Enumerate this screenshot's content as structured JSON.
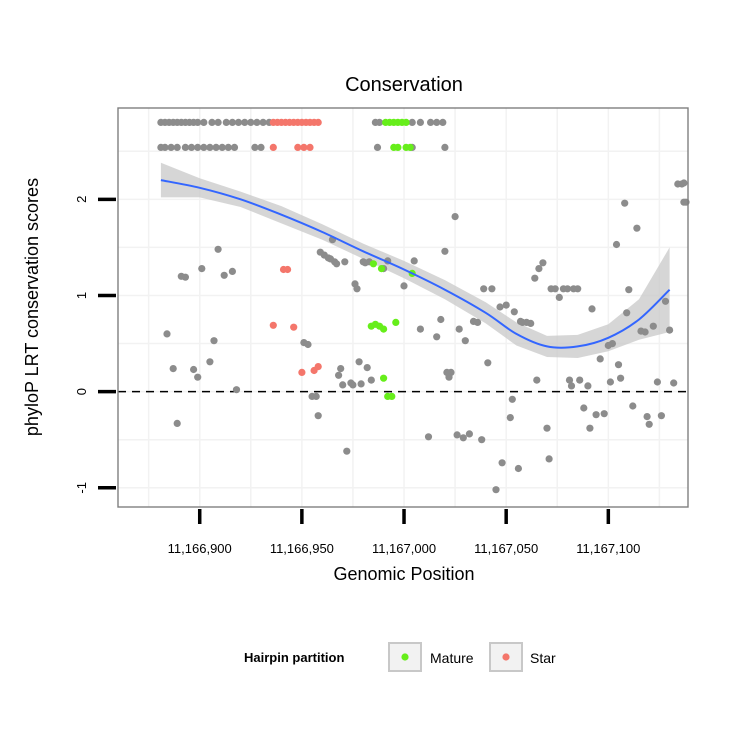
{
  "chart_data": {
    "type": "scatter",
    "title": "Conservation",
    "xlabel": "Genomic Position",
    "ylabel": "phyloP LRT conservation scores",
    "xlim": [
      11166860,
      11167139
    ],
    "ylim": [
      -1.2,
      2.95
    ],
    "x_ticks": [
      {
        "value": 11166900,
        "label": "11,166,900"
      },
      {
        "value": 11166950,
        "label": "11,166,950"
      },
      {
        "value": 11167000,
        "label": "11,167,000"
      },
      {
        "value": 11167050,
        "label": "11,167,050"
      },
      {
        "value": 11167100,
        "label": "11,167,100"
      }
    ],
    "y_ticks": [
      {
        "value": -1,
        "label": "-1"
      },
      {
        "value": 0,
        "label": "0"
      },
      {
        "value": 1,
        "label": "1"
      },
      {
        "value": 2,
        "label": "2"
      }
    ],
    "reference_line": {
      "y": 0,
      "style": "dashed"
    },
    "grid": true,
    "legend": {
      "title": "Hairpin partition",
      "position": "bottom",
      "entries": [
        {
          "name": "Mature",
          "color": "#66ee1a"
        },
        {
          "name": "Star",
          "color": "#f4766b"
        }
      ]
    },
    "colors": {
      "other": "#8c8c8c",
      "Mature": "#66ee1a",
      "Star": "#f4766b",
      "smooth": "#3366ff",
      "band": "#c8c8c8"
    },
    "smooth_line": {
      "x": [
        11166881,
        11166900,
        11166920,
        11166940,
        11166960,
        11166980,
        11167000,
        11167020,
        11167040,
        11167055,
        11167070,
        11167085,
        11167100,
        11167115,
        11167130
      ],
      "y": [
        2.2,
        2.12,
        2.0,
        1.84,
        1.66,
        1.46,
        1.27,
        1.06,
        0.82,
        0.6,
        0.47,
        0.47,
        0.56,
        0.75,
        1.06
      ],
      "upper": [
        2.38,
        2.22,
        2.08,
        1.93,
        1.74,
        1.54,
        1.36,
        1.16,
        0.93,
        0.72,
        0.58,
        0.59,
        0.7,
        0.96,
        1.5
      ],
      "lower": [
        2.02,
        2.02,
        1.92,
        1.75,
        1.58,
        1.38,
        1.18,
        0.96,
        0.71,
        0.48,
        0.36,
        0.35,
        0.42,
        0.54,
        0.62
      ]
    },
    "series": [
      {
        "name": "Other",
        "points": [
          [
            11166881,
            2.8
          ],
          [
            11166883,
            2.8
          ],
          [
            11166885,
            2.8
          ],
          [
            11166887,
            2.8
          ],
          [
            11166889,
            2.8
          ],
          [
            11166891,
            2.8
          ],
          [
            11166893,
            2.8
          ],
          [
            11166895,
            2.8
          ],
          [
            11166897,
            2.8
          ],
          [
            11166899,
            2.8
          ],
          [
            11166902,
            2.8
          ],
          [
            11166906,
            2.8
          ],
          [
            11166909,
            2.8
          ],
          [
            11166913,
            2.8
          ],
          [
            11166916,
            2.8
          ],
          [
            11166919,
            2.8
          ],
          [
            11166922,
            2.8
          ],
          [
            11166925,
            2.8
          ],
          [
            11166928,
            2.8
          ],
          [
            11166931,
            2.8
          ],
          [
            11166934,
            2.8
          ],
          [
            11166986,
            2.8
          ],
          [
            11166988,
            2.8
          ],
          [
            11167004,
            2.8
          ],
          [
            11167008,
            2.8
          ],
          [
            11167013,
            2.8
          ],
          [
            11167016,
            2.8
          ],
          [
            11167019,
            2.8
          ],
          [
            11166881,
            2.54
          ],
          [
            11166883,
            2.54
          ],
          [
            11166886,
            2.54
          ],
          [
            11166889,
            2.54
          ],
          [
            11166893,
            2.54
          ],
          [
            11166896,
            2.54
          ],
          [
            11166899,
            2.54
          ],
          [
            11166902,
            2.54
          ],
          [
            11166905,
            2.54
          ],
          [
            11166908,
            2.54
          ],
          [
            11166911,
            2.54
          ],
          [
            11166914,
            2.54
          ],
          [
            11166917,
            2.54
          ],
          [
            11166927,
            2.54
          ],
          [
            11166930,
            2.54
          ],
          [
            11166987,
            2.54
          ],
          [
            11167004,
            2.54
          ],
          [
            11167020,
            2.54
          ],
          [
            11166884,
            0.6
          ],
          [
            11166887,
            0.24
          ],
          [
            11166889,
            -0.33
          ],
          [
            11166891,
            1.2
          ],
          [
            11166893,
            1.19
          ],
          [
            11166897,
            0.23
          ],
          [
            11166899,
            0.15
          ],
          [
            11166901,
            1.28
          ],
          [
            11166905,
            0.31
          ],
          [
            11166907,
            0.53
          ],
          [
            11166909,
            1.48
          ],
          [
            11166912,
            1.21
          ],
          [
            11166916,
            1.25
          ],
          [
            11166918,
            0.02
          ],
          [
            11166951,
            0.51
          ],
          [
            11166953,
            0.49
          ],
          [
            11166955,
            -0.05
          ],
          [
            11166957,
            -0.05
          ],
          [
            11166958,
            -0.25
          ],
          [
            11166959,
            1.45
          ],
          [
            11166961,
            1.42
          ],
          [
            11166963,
            1.39
          ],
          [
            11166964,
            1.38
          ],
          [
            11166965,
            1.58
          ],
          [
            11166966,
            1.35
          ],
          [
            11166967,
            1.33
          ],
          [
            11166968,
            0.17
          ],
          [
            11166969,
            0.24
          ],
          [
            11166970,
            0.07
          ],
          [
            11166971,
            1.35
          ],
          [
            11166972,
            -0.62
          ],
          [
            11166974,
            0.09
          ],
          [
            11166975,
            0.07
          ],
          [
            11166976,
            1.12
          ],
          [
            11166977,
            1.07
          ],
          [
            11166978,
            0.31
          ],
          [
            11166979,
            0.08
          ],
          [
            11166980,
            1.35
          ],
          [
            11166981,
            1.34
          ],
          [
            11166982,
            0.25
          ],
          [
            11166983,
            1.35
          ],
          [
            11166984,
            0.12
          ],
          [
            11166990,
            1.28
          ],
          [
            11166992,
            1.36
          ],
          [
            11167000,
            1.1
          ],
          [
            11167005,
            1.36
          ],
          [
            11167008,
            0.65
          ],
          [
            11167012,
            -0.47
          ],
          [
            11167016,
            0.57
          ],
          [
            11167018,
            0.75
          ],
          [
            11167020,
            1.46
          ],
          [
            11167021,
            0.2
          ],
          [
            11167022,
            0.15
          ],
          [
            11167023,
            0.2
          ],
          [
            11167025,
            1.82
          ],
          [
            11167026,
            -0.45
          ],
          [
            11167027,
            0.65
          ],
          [
            11167029,
            -0.48
          ],
          [
            11167030,
            0.53
          ],
          [
            11167032,
            -0.44
          ],
          [
            11167034,
            0.73
          ],
          [
            11167036,
            0.72
          ],
          [
            11167038,
            -0.5
          ],
          [
            11167039,
            1.07
          ],
          [
            11167041,
            0.3
          ],
          [
            11167043,
            1.07
          ],
          [
            11167045,
            -1.02
          ],
          [
            11167047,
            0.88
          ],
          [
            11167048,
            -0.74
          ],
          [
            11167050,
            0.9
          ],
          [
            11167052,
            -0.27
          ],
          [
            11167053,
            -0.08
          ],
          [
            11167054,
            0.83
          ],
          [
            11167056,
            -0.8
          ],
          [
            11167057,
            0.73
          ],
          [
            11167058,
            0.72
          ],
          [
            11167060,
            0.72
          ],
          [
            11167062,
            0.71
          ],
          [
            11167064,
            1.18
          ],
          [
            11167065,
            0.12
          ],
          [
            11167066,
            1.28
          ],
          [
            11167068,
            1.34
          ],
          [
            11167070,
            -0.38
          ],
          [
            11167071,
            -0.7
          ],
          [
            11167072,
            1.07
          ],
          [
            11167074,
            1.07
          ],
          [
            11167076,
            0.98
          ],
          [
            11167078,
            1.07
          ],
          [
            11167080,
            1.07
          ],
          [
            11167081,
            0.12
          ],
          [
            11167082,
            0.06
          ],
          [
            11167083,
            1.07
          ],
          [
            11167085,
            1.07
          ],
          [
            11167086,
            0.12
          ],
          [
            11167088,
            -0.17
          ],
          [
            11167090,
            0.06
          ],
          [
            11167091,
            -0.38
          ],
          [
            11167092,
            0.86
          ],
          [
            11167094,
            -0.24
          ],
          [
            11167096,
            0.34
          ],
          [
            11167098,
            -0.23
          ],
          [
            11167100,
            0.48
          ],
          [
            11167101,
            0.1
          ],
          [
            11167102,
            0.5
          ],
          [
            11167104,
            1.53
          ],
          [
            11167105,
            0.28
          ],
          [
            11167106,
            0.14
          ],
          [
            11167108,
            1.96
          ],
          [
            11167109,
            0.82
          ],
          [
            11167110,
            1.06
          ],
          [
            11167112,
            -0.15
          ],
          [
            11167114,
            1.7
          ],
          [
            11167116,
            0.63
          ],
          [
            11167118,
            0.62
          ],
          [
            11167119,
            -0.26
          ],
          [
            11167120,
            -0.34
          ],
          [
            11167122,
            0.68
          ],
          [
            11167124,
            0.1
          ],
          [
            11167126,
            -0.25
          ],
          [
            11167128,
            0.94
          ],
          [
            11167130,
            0.64
          ],
          [
            11167132,
            0.09
          ],
          [
            11167134,
            2.16
          ],
          [
            11167136,
            2.16
          ],
          [
            11167137,
            1.97
          ],
          [
            11167138,
            1.97
          ],
          [
            11167137,
            2.17
          ]
        ]
      },
      {
        "name": "Mature",
        "points": [
          [
            11166991,
            2.8
          ],
          [
            11166993,
            2.8
          ],
          [
            11166995,
            2.8
          ],
          [
            11166997,
            2.8
          ],
          [
            11166999,
            2.8
          ],
          [
            11167001,
            2.8
          ],
          [
            11166995,
            2.54
          ],
          [
            11166997,
            2.54
          ],
          [
            11167001,
            2.54
          ],
          [
            11167003,
            2.54
          ],
          [
            11166985,
            1.33
          ],
          [
            11166989,
            1.28
          ],
          [
            11167004,
            1.23
          ],
          [
            11166984,
            0.68
          ],
          [
            11166986,
            0.7
          ],
          [
            11166988,
            0.68
          ],
          [
            11166990,
            0.65
          ],
          [
            11166996,
            0.72
          ],
          [
            11166990,
            0.14
          ],
          [
            11166992,
            -0.05
          ],
          [
            11166994,
            -0.05
          ]
        ]
      },
      {
        "name": "Star",
        "points": [
          [
            11166936,
            2.8
          ],
          [
            11166938,
            2.8
          ],
          [
            11166940,
            2.8
          ],
          [
            11166942,
            2.8
          ],
          [
            11166944,
            2.8
          ],
          [
            11166946,
            2.8
          ],
          [
            11166948,
            2.8
          ],
          [
            11166950,
            2.8
          ],
          [
            11166952,
            2.8
          ],
          [
            11166954,
            2.8
          ],
          [
            11166956,
            2.8
          ],
          [
            11166958,
            2.8
          ],
          [
            11166936,
            2.54
          ],
          [
            11166948,
            2.54
          ],
          [
            11166951,
            2.54
          ],
          [
            11166954,
            2.54
          ],
          [
            11166941,
            1.27
          ],
          [
            11166943,
            1.27
          ],
          [
            11166936,
            0.69
          ],
          [
            11166946,
            0.67
          ],
          [
            11166950,
            0.2
          ],
          [
            11166956,
            0.22
          ],
          [
            11166958,
            0.26
          ]
        ]
      }
    ]
  }
}
